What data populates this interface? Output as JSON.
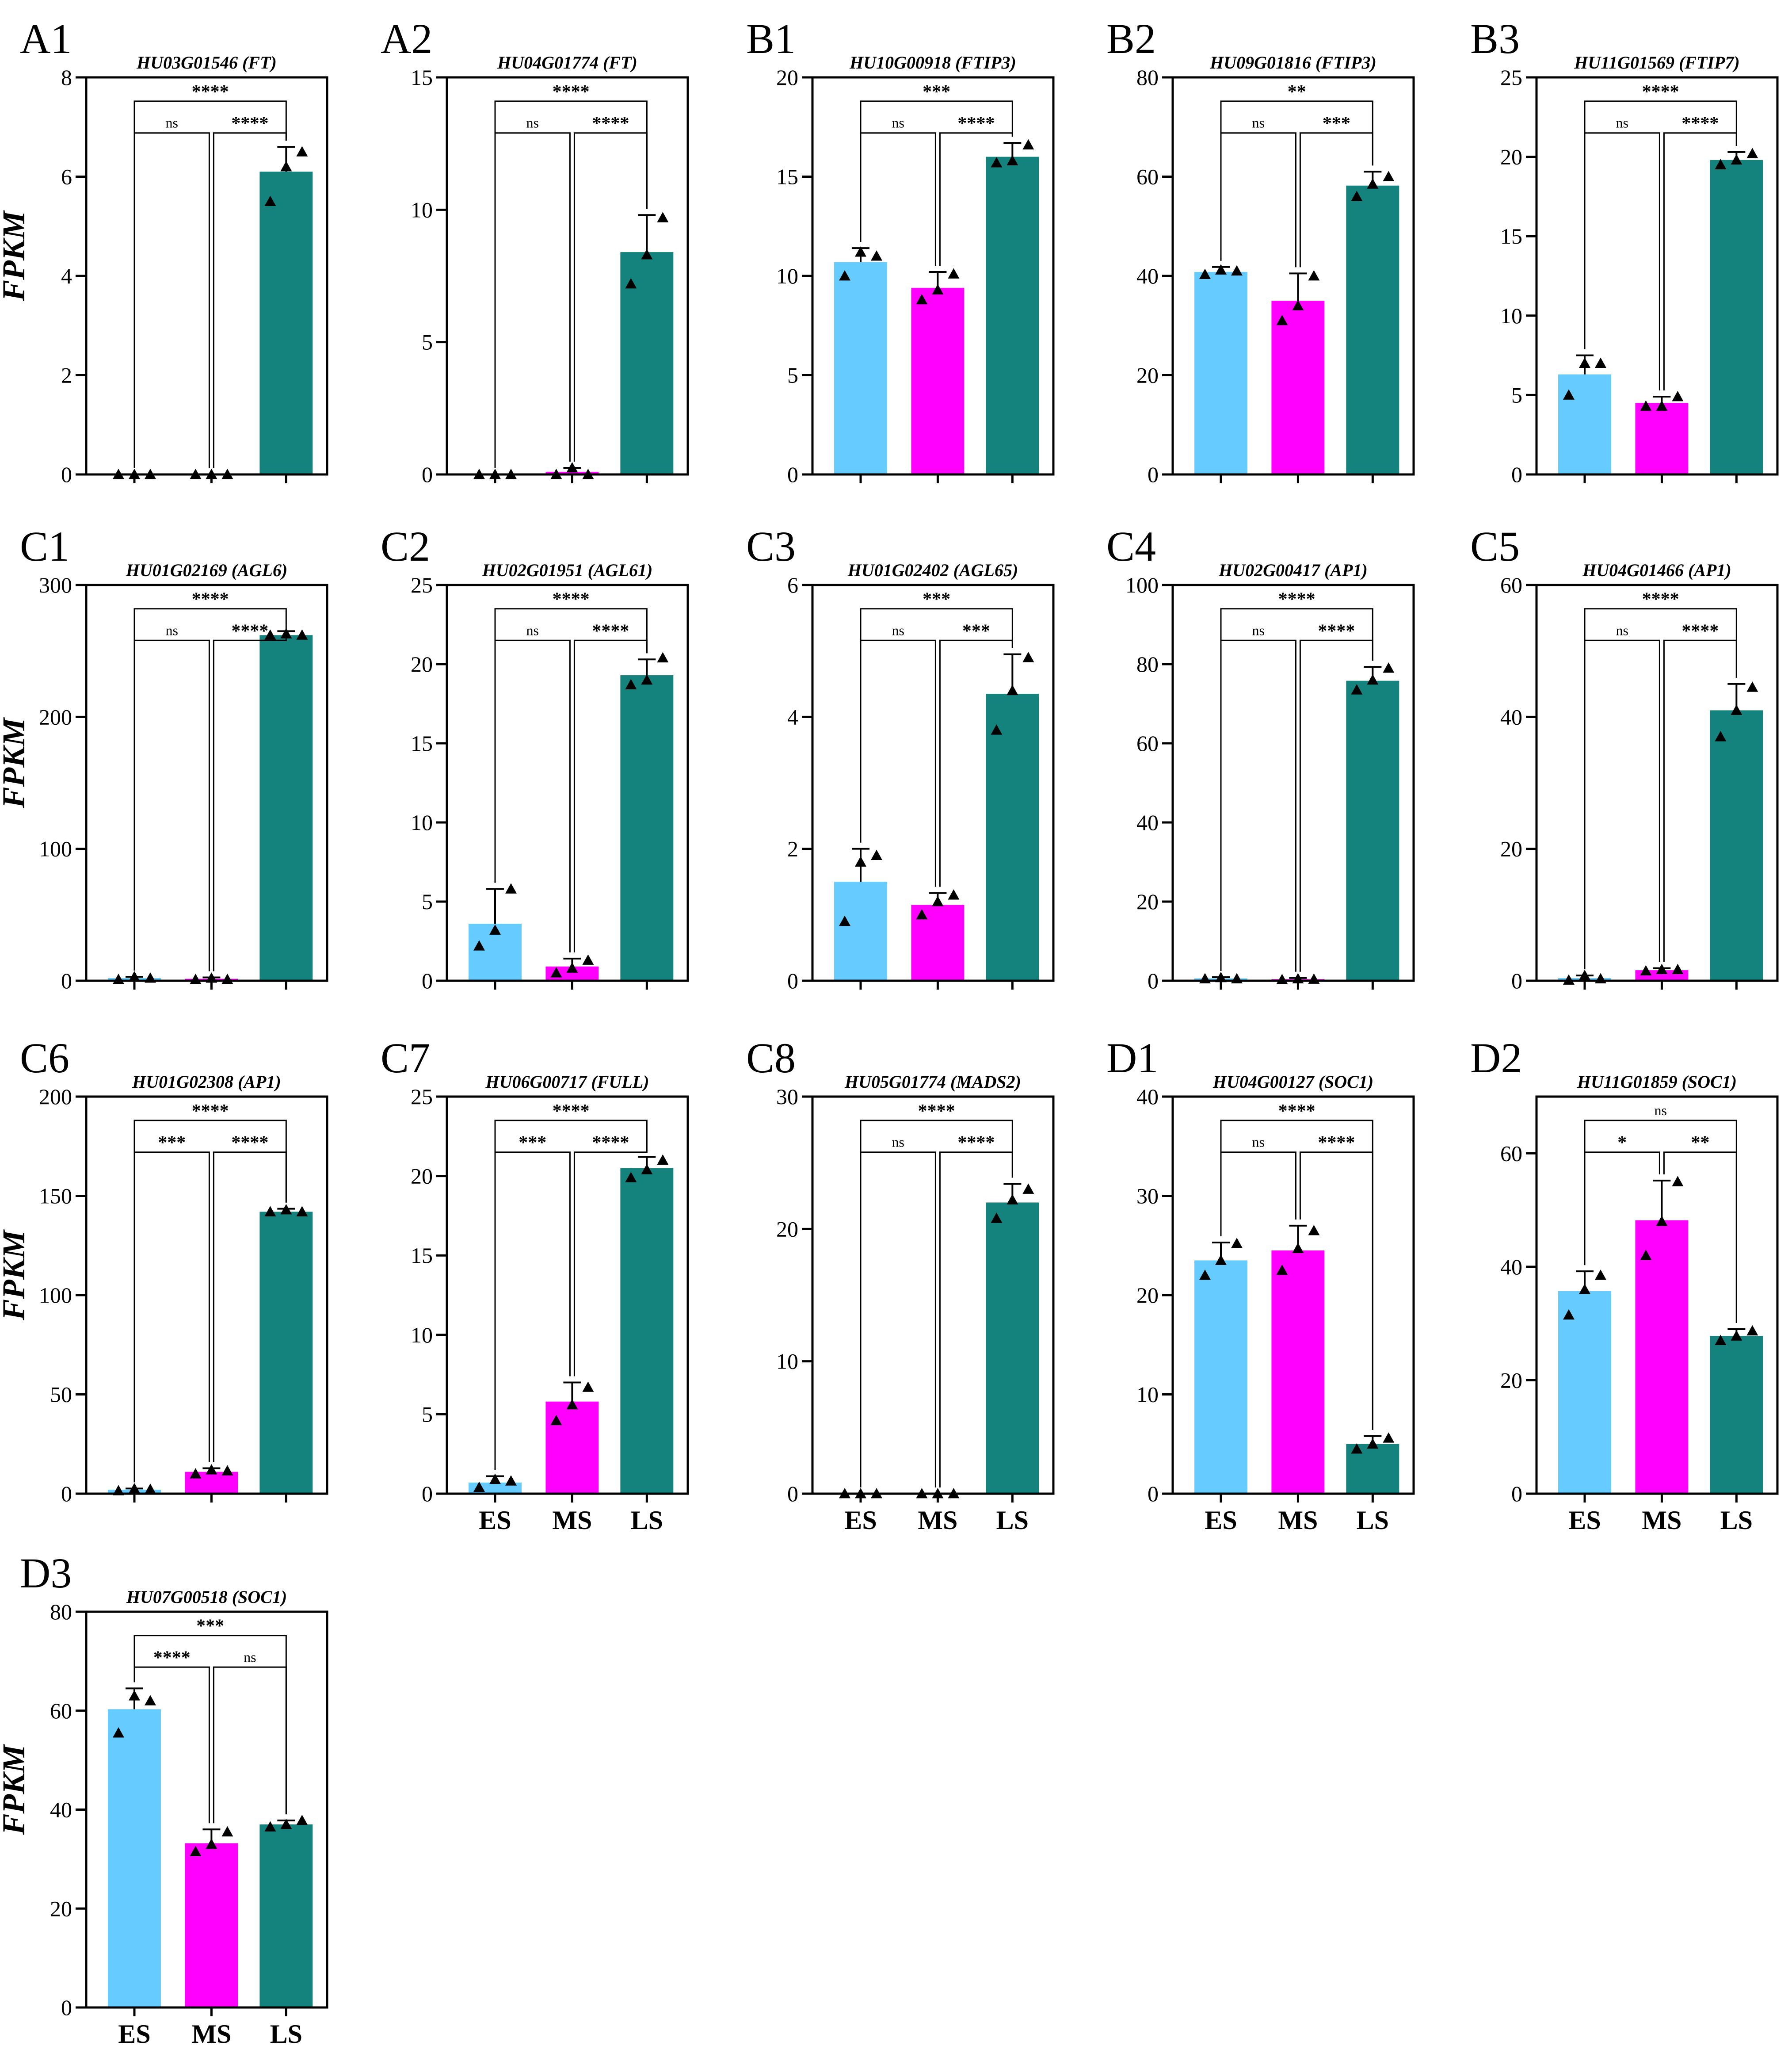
{
  "figure": {
    "ylabel": "FPKM",
    "categories": [
      "ES",
      "MS",
      "LS"
    ],
    "colors": {
      "ES": "#66ccff",
      "MS": "#ff00ff",
      "LS": "#14837d"
    }
  },
  "chart_data": [
    {
      "type": "bar",
      "panel": "A1",
      "title": "HU03G01546 (FT)",
      "ylabel": "FPKM",
      "categories": [
        "ES",
        "MS",
        "LS"
      ],
      "values": [
        0,
        0,
        6.1
      ],
      "errors": [
        0,
        0,
        0.5
      ],
      "replicates": [
        [
          0,
          0,
          0
        ],
        [
          0,
          0,
          0
        ],
        [
          5.5,
          6.2,
          6.5
        ]
      ],
      "ylim": [
        0,
        8
      ],
      "yticks": [
        0,
        2,
        4,
        6,
        8
      ],
      "show_xticks": false,
      "comparisons": [
        {
          "from": 0,
          "to": 1,
          "label": "ns",
          "level": 1
        },
        {
          "from": 1,
          "to": 2,
          "label": "****",
          "level": 1
        },
        {
          "from": 0,
          "to": 2,
          "label": "****",
          "level": 2
        }
      ]
    },
    {
      "type": "bar",
      "panel": "A2",
      "title": "HU04G01774 (FT)",
      "ylabel": "",
      "categories": [
        "ES",
        "MS",
        "LS"
      ],
      "values": [
        0,
        0.1,
        8.4
      ],
      "errors": [
        0,
        0.15,
        1.4
      ],
      "replicates": [
        [
          0,
          0,
          0
        ],
        [
          0,
          0.25,
          0
        ],
        [
          7.2,
          8.3,
          9.7
        ]
      ],
      "ylim": [
        0,
        15
      ],
      "yticks": [
        0,
        5,
        10,
        15
      ],
      "show_xticks": false,
      "comparisons": [
        {
          "from": 0,
          "to": 1,
          "label": "ns",
          "level": 1
        },
        {
          "from": 1,
          "to": 2,
          "label": "****",
          "level": 1
        },
        {
          "from": 0,
          "to": 2,
          "label": "****",
          "level": 2
        }
      ]
    },
    {
      "type": "bar",
      "panel": "B1",
      "title": "HU10G00918 (FTIP3)",
      "ylabel": "",
      "categories": [
        "ES",
        "MS",
        "LS"
      ],
      "values": [
        10.7,
        9.4,
        16.0
      ],
      "errors": [
        0.7,
        0.8,
        0.7
      ],
      "replicates": [
        [
          10.0,
          11.2,
          11.0
        ],
        [
          8.8,
          9.3,
          10.1
        ],
        [
          15.7,
          15.8,
          16.6
        ]
      ],
      "ylim": [
        0,
        20
      ],
      "yticks": [
        0,
        5,
        10,
        15,
        20
      ],
      "show_xticks": false,
      "comparisons": [
        {
          "from": 0,
          "to": 1,
          "label": "ns",
          "level": 1
        },
        {
          "from": 1,
          "to": 2,
          "label": "****",
          "level": 1
        },
        {
          "from": 0,
          "to": 2,
          "label": "***",
          "level": 2
        }
      ]
    },
    {
      "type": "bar",
      "panel": "B2",
      "title": "HU09G01816 (FTIP3)",
      "ylabel": "",
      "categories": [
        "ES",
        "MS",
        "LS"
      ],
      "values": [
        40.8,
        35.0,
        58.2
      ],
      "errors": [
        1.0,
        5.5,
        2.8
      ],
      "replicates": [
        [
          40.3,
          41.2,
          41.0
        ],
        [
          31.0,
          34.0,
          40.0
        ],
        [
          56.0,
          58.5,
          60.0
        ]
      ],
      "ylim": [
        0,
        80
      ],
      "yticks": [
        0,
        20,
        40,
        60,
        80
      ],
      "show_xticks": false,
      "comparisons": [
        {
          "from": 0,
          "to": 1,
          "label": "ns",
          "level": 1
        },
        {
          "from": 1,
          "to": 2,
          "label": "***",
          "level": 1
        },
        {
          "from": 0,
          "to": 2,
          "label": "**",
          "level": 2
        }
      ]
    },
    {
      "type": "bar",
      "panel": "B3",
      "title": "HU11G01569 (FTIP7)",
      "ylabel": "",
      "categories": [
        "ES",
        "MS",
        "LS"
      ],
      "values": [
        6.3,
        4.5,
        19.8
      ],
      "errors": [
        1.2,
        0.4,
        0.5
      ],
      "replicates": [
        [
          5.0,
          7.0,
          7.0
        ],
        [
          4.3,
          4.3,
          4.9
        ],
        [
          19.5,
          19.8,
          20.2
        ]
      ],
      "ylim": [
        0,
        25
      ],
      "yticks": [
        0,
        5,
        10,
        15,
        20,
        25
      ],
      "show_xticks": false,
      "comparisons": [
        {
          "from": 0,
          "to": 1,
          "label": "ns",
          "level": 1
        },
        {
          "from": 1,
          "to": 2,
          "label": "****",
          "level": 1
        },
        {
          "from": 0,
          "to": 2,
          "label": "****",
          "level": 2
        }
      ]
    },
    {
      "type": "bar",
      "panel": "C1",
      "title": "HU01G02169 (AGL6)",
      "ylabel": "FPKM",
      "categories": [
        "ES",
        "MS",
        "LS"
      ],
      "values": [
        2,
        1.5,
        262
      ],
      "errors": [
        1,
        1,
        3
      ],
      "replicates": [
        [
          1,
          3,
          2
        ],
        [
          1,
          2,
          1
        ],
        [
          262,
          263,
          262
        ]
      ],
      "ylim": [
        0,
        300
      ],
      "yticks": [
        0,
        100,
        200,
        300
      ],
      "show_xticks": false,
      "comparisons": [
        {
          "from": 0,
          "to": 1,
          "label": "ns",
          "level": 1
        },
        {
          "from": 1,
          "to": 2,
          "label": "****",
          "level": 1
        },
        {
          "from": 0,
          "to": 2,
          "label": "****",
          "level": 2
        }
      ]
    },
    {
      "type": "bar",
      "panel": "C2",
      "title": "HU02G01951 (AGL61)",
      "ylabel": "",
      "categories": [
        "ES",
        "MS",
        "LS"
      ],
      "values": [
        3.6,
        0.9,
        19.3
      ],
      "errors": [
        2.2,
        0.5,
        1.0
      ],
      "replicates": [
        [
          2.2,
          3.2,
          5.8
        ],
        [
          0.5,
          0.8,
          1.3
        ],
        [
          18.7,
          19.0,
          20.4
        ]
      ],
      "ylim": [
        0,
        25
      ],
      "yticks": [
        0,
        5,
        10,
        15,
        20,
        25
      ],
      "show_xticks": false,
      "comparisons": [
        {
          "from": 0,
          "to": 1,
          "label": "ns",
          "level": 1
        },
        {
          "from": 1,
          "to": 2,
          "label": "****",
          "level": 1
        },
        {
          "from": 0,
          "to": 2,
          "label": "****",
          "level": 2
        }
      ]
    },
    {
      "type": "bar",
      "panel": "C3",
      "title": "HU01G02402 (AGL65)",
      "ylabel": "",
      "categories": [
        "ES",
        "MS",
        "LS"
      ],
      "values": [
        1.5,
        1.15,
        4.35
      ],
      "errors": [
        0.5,
        0.18,
        0.6
      ],
      "replicates": [
        [
          0.9,
          1.8,
          1.9
        ],
        [
          1.0,
          1.2,
          1.3
        ],
        [
          3.8,
          4.4,
          4.9
        ]
      ],
      "ylim": [
        0,
        6
      ],
      "yticks": [
        0,
        2,
        4,
        6
      ],
      "show_xticks": false,
      "comparisons": [
        {
          "from": 0,
          "to": 1,
          "label": "ns",
          "level": 1
        },
        {
          "from": 1,
          "to": 2,
          "label": "***",
          "level": 1
        },
        {
          "from": 0,
          "to": 2,
          "label": "***",
          "level": 2
        }
      ]
    },
    {
      "type": "bar",
      "panel": "C4",
      "title": "HU02G00417 (AP1)",
      "ylabel": "",
      "categories": [
        "ES",
        "MS",
        "LS"
      ],
      "values": [
        0.6,
        0.4,
        75.8
      ],
      "errors": [
        0.3,
        0.3,
        3.5
      ],
      "replicates": [
        [
          0.5,
          0.8,
          0.5
        ],
        [
          0.3,
          0.5,
          0.4
        ],
        [
          73.5,
          76.0,
          79.0
        ]
      ],
      "ylim": [
        0,
        100
      ],
      "yticks": [
        0,
        20,
        40,
        60,
        80,
        100
      ],
      "show_xticks": false,
      "comparisons": [
        {
          "from": 0,
          "to": 1,
          "label": "ns",
          "level": 1
        },
        {
          "from": 1,
          "to": 2,
          "label": "****",
          "level": 1
        },
        {
          "from": 0,
          "to": 2,
          "label": "****",
          "level": 2
        }
      ]
    },
    {
      "type": "bar",
      "panel": "C5",
      "title": "HU04G01466 (AP1)",
      "ylabel": "",
      "categories": [
        "ES",
        "MS",
        "LS"
      ],
      "values": [
        0.4,
        1.6,
        41.0
      ],
      "errors": [
        0.4,
        0.3,
        4.0
      ],
      "replicates": [
        [
          0.1,
          0.8,
          0.3
        ],
        [
          1.5,
          1.7,
          1.7
        ],
        [
          37.0,
          41.0,
          44.5
        ]
      ],
      "ylim": [
        0,
        60
      ],
      "yticks": [
        0,
        20,
        40,
        60
      ],
      "show_xticks": false,
      "comparisons": [
        {
          "from": 0,
          "to": 1,
          "label": "ns",
          "level": 1
        },
        {
          "from": 1,
          "to": 2,
          "label": "****",
          "level": 1
        },
        {
          "from": 0,
          "to": 2,
          "label": "****",
          "level": 2
        }
      ]
    },
    {
      "type": "bar",
      "panel": "C6",
      "title": "HU01G02308 (AP1)",
      "ylabel": "FPKM",
      "categories": [
        "ES",
        "MS",
        "LS"
      ],
      "values": [
        2,
        11,
        142
      ],
      "errors": [
        0.6,
        1.8,
        1.5
      ],
      "replicates": [
        [
          1.5,
          2.5,
          2.2
        ],
        [
          10,
          12,
          11.5
        ],
        [
          142,
          143,
          142
        ]
      ],
      "ylim": [
        0,
        200
      ],
      "yticks": [
        0,
        50,
        100,
        150,
        200
      ],
      "show_xticks": false,
      "comparisons": [
        {
          "from": 0,
          "to": 1,
          "label": "***",
          "level": 1
        },
        {
          "from": 1,
          "to": 2,
          "label": "****",
          "level": 1
        },
        {
          "from": 0,
          "to": 2,
          "label": "****",
          "level": 2
        }
      ]
    },
    {
      "type": "bar",
      "panel": "C7",
      "title": "HU06G00717 (FULL)",
      "ylabel": "",
      "categories": [
        "ES",
        "MS",
        "LS"
      ],
      "values": [
        0.7,
        5.8,
        20.5
      ],
      "errors": [
        0.4,
        1.2,
        0.7
      ],
      "replicates": [
        [
          0.4,
          0.9,
          0.8
        ],
        [
          4.6,
          5.6,
          6.7
        ],
        [
          19.9,
          20.4,
          21.0
        ]
      ],
      "ylim": [
        0,
        25
      ],
      "yticks": [
        0,
        5,
        10,
        15,
        20,
        25
      ],
      "show_xticks": true,
      "comparisons": [
        {
          "from": 0,
          "to": 1,
          "label": "***",
          "level": 1
        },
        {
          "from": 1,
          "to": 2,
          "label": "****",
          "level": 1
        },
        {
          "from": 0,
          "to": 2,
          "label": "****",
          "level": 2
        }
      ]
    },
    {
      "type": "bar",
      "panel": "C8",
      "title": "HU05G01774 (MADS2)",
      "ylabel": "",
      "categories": [
        "ES",
        "MS",
        "LS"
      ],
      "values": [
        0,
        0,
        22.0
      ],
      "errors": [
        0,
        0,
        1.4
      ],
      "replicates": [
        [
          0,
          0,
          0
        ],
        [
          0,
          0,
          0
        ],
        [
          20.8,
          22.2,
          23.0
        ]
      ],
      "ylim": [
        0,
        30
      ],
      "yticks": [
        0,
        10,
        20,
        30
      ],
      "show_xticks": true,
      "comparisons": [
        {
          "from": 0,
          "to": 1,
          "label": "ns",
          "level": 1
        },
        {
          "from": 1,
          "to": 2,
          "label": "****",
          "level": 1
        },
        {
          "from": 0,
          "to": 2,
          "label": "****",
          "level": 2
        }
      ]
    },
    {
      "type": "bar",
      "panel": "D1",
      "title": "HU04G00127 (SOC1)",
      "ylabel": "",
      "categories": [
        "ES",
        "MS",
        "LS"
      ],
      "values": [
        23.5,
        24.5,
        5.0
      ],
      "errors": [
        1.8,
        2.5,
        0.8
      ],
      "replicates": [
        [
          22.0,
          23.5,
          25.2
        ],
        [
          22.5,
          24.7,
          26.5
        ],
        [
          4.5,
          5.0,
          5.6
        ]
      ],
      "ylim": [
        0,
        40
      ],
      "yticks": [
        0,
        10,
        20,
        30,
        40
      ],
      "show_xticks": true,
      "comparisons": [
        {
          "from": 0,
          "to": 1,
          "label": "ns",
          "level": 1
        },
        {
          "from": 1,
          "to": 2,
          "label": "****",
          "level": 1
        },
        {
          "from": 0,
          "to": 2,
          "label": "****",
          "level": 2
        }
      ]
    },
    {
      "type": "bar",
      "panel": "D2",
      "title": "HU11G01859 (SOC1)",
      "ylabel": "",
      "categories": [
        "ES",
        "MS",
        "LS"
      ],
      "values": [
        35.7,
        48.2,
        27.8
      ],
      "errors": [
        3.5,
        7.0,
        1.2
      ],
      "replicates": [
        [
          31.5,
          36.0,
          38.5
        ],
        [
          42.0,
          48.0,
          55.0
        ],
        [
          27.0,
          27.8,
          28.7
        ]
      ],
      "ylim": [
        0,
        70
      ],
      "yticks": [
        0,
        20,
        40,
        60
      ],
      "show_xticks": true,
      "comparisons": [
        {
          "from": 0,
          "to": 1,
          "label": "*",
          "level": 1
        },
        {
          "from": 1,
          "to": 2,
          "label": "**",
          "level": 1
        },
        {
          "from": 0,
          "to": 2,
          "label": "ns",
          "level": 2
        }
      ]
    },
    {
      "type": "bar",
      "panel": "D3",
      "title": "HU07G00518 (SOC1)",
      "ylabel": "FPKM",
      "categories": [
        "ES",
        "MS",
        "LS"
      ],
      "values": [
        60.3,
        33.2,
        37.0
      ],
      "errors": [
        4.2,
        2.8,
        0.8
      ],
      "replicates": [
        [
          55.5,
          63.0,
          62.0
        ],
        [
          31.5,
          33.0,
          35.5
        ],
        [
          36.5,
          37.0,
          37.8
        ]
      ],
      "ylim": [
        0,
        80
      ],
      "yticks": [
        0,
        20,
        40,
        60,
        80
      ],
      "show_xticks": true,
      "comparisons": [
        {
          "from": 0,
          "to": 1,
          "label": "****",
          "level": 1
        },
        {
          "from": 1,
          "to": 2,
          "label": "ns",
          "level": 1
        },
        {
          "from": 0,
          "to": 2,
          "label": "***",
          "level": 2
        }
      ]
    }
  ]
}
